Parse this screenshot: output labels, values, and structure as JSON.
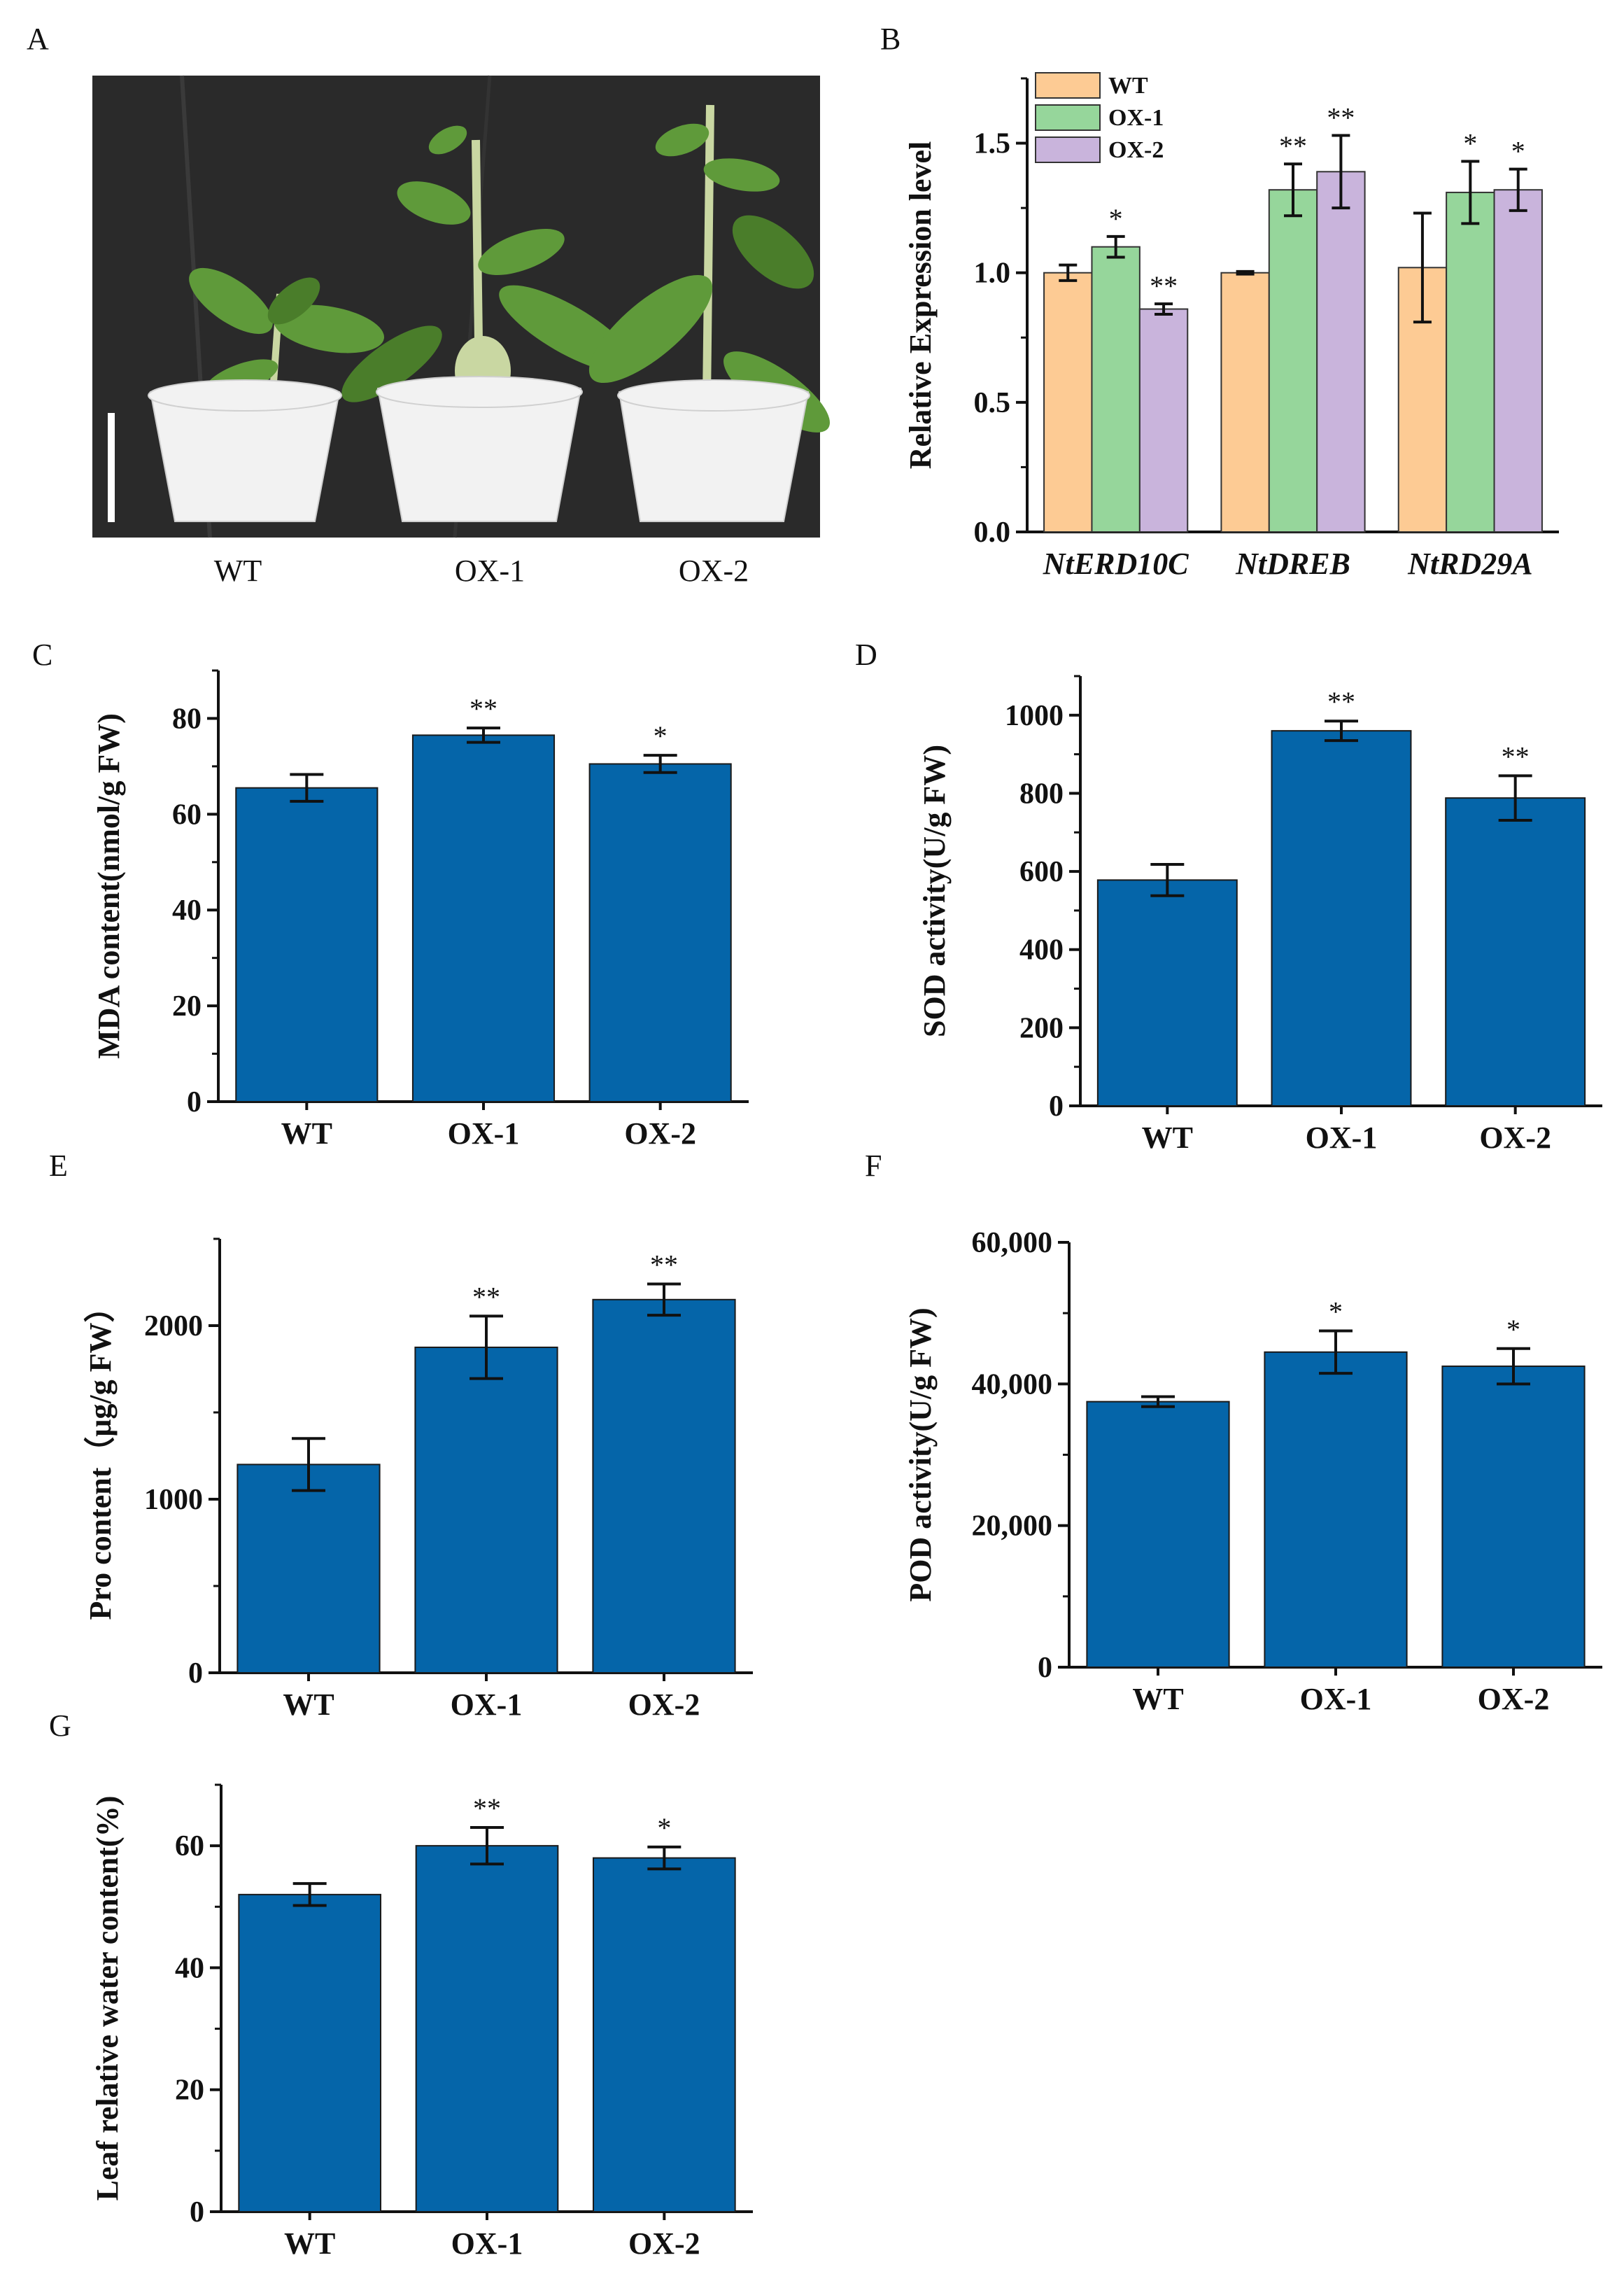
{
  "panel_a": {
    "letter": "A",
    "labels": [
      "WT",
      "OX-1",
      "OX-2"
    ],
    "colors": {
      "background": "#2a2a2a",
      "pot": "#f2f2f2",
      "leaf": "#5f9a3a",
      "leaf_dark": "#4a7d2a",
      "stem": "#c9d7a2",
      "scale_bar": "#ffffff"
    }
  },
  "colors": {
    "bar": "#0565a9",
    "bar_edge": "#1a1a1a",
    "wt": "#fdcb94",
    "ox1": "#96d69b",
    "ox2": "#c9b4dc"
  },
  "chart_data": [
    {
      "id": "B",
      "letter": "B",
      "type": "bar",
      "categories": [
        "NtERD10C",
        "NtDREB",
        "NtRD29A"
      ],
      "series": [
        {
          "name": "WT",
          "values": [
            1.0,
            1.0,
            1.02
          ],
          "errors": [
            0.03,
            0.005,
            0.21
          ],
          "sig": [
            "",
            "",
            ""
          ]
        },
        {
          "name": "OX-1",
          "values": [
            1.1,
            1.32,
            1.31
          ],
          "errors": [
            0.04,
            0.1,
            0.12
          ],
          "sig": [
            "*",
            "**",
            "*"
          ]
        },
        {
          "name": "OX-2",
          "values": [
            0.86,
            1.39,
            1.32
          ],
          "errors": [
            0.02,
            0.14,
            0.08
          ],
          "sig": [
            "**",
            "**",
            "*"
          ]
        }
      ],
      "ylabel": "Relative Expression level",
      "ylim": [
        0,
        1.75
      ],
      "yticks": [
        0,
        0.5,
        1.0,
        1.5
      ],
      "ytick_labels": [
        "0.0",
        "0.5",
        "1.0",
        "1.5"
      ],
      "legend": "top-left"
    },
    {
      "id": "C",
      "letter": "C",
      "type": "bar",
      "categories": [
        "WT",
        "OX-1",
        "OX-2"
      ],
      "values": [
        65.5,
        76.5,
        70.5
      ],
      "errors": [
        2.8,
        1.5,
        1.8
      ],
      "sig": [
        "",
        "**",
        "*"
      ],
      "ylabel": "MDA content(nmol/g FW)",
      "ylim": [
        0,
        90
      ],
      "yticks": [
        0,
        20,
        40,
        60,
        80
      ],
      "ytick_labels": [
        "0",
        "20",
        "40",
        "60",
        "80"
      ]
    },
    {
      "id": "D",
      "letter": "D",
      "type": "bar",
      "categories": [
        "WT",
        "OX-1",
        "OX-2"
      ],
      "values": [
        578,
        960,
        788
      ],
      "errors": [
        40,
        25,
        57
      ],
      "sig": [
        "",
        "**",
        "**"
      ],
      "ylabel": "SOD activity(U/g FW)",
      "ylim": [
        0,
        1100
      ],
      "yticks": [
        0,
        200,
        400,
        600,
        800,
        1000
      ],
      "ytick_labels": [
        "0",
        "200",
        "400",
        "600",
        "800",
        "1000"
      ]
    },
    {
      "id": "E",
      "letter": "E",
      "type": "bar",
      "categories": [
        "WT",
        "OX-1",
        "OX-2"
      ],
      "values": [
        1200,
        1875,
        2150
      ],
      "errors": [
        150,
        180,
        90
      ],
      "sig": [
        "",
        "**",
        "**"
      ],
      "ylabel": "Pro content（μg/g FW）",
      "ylim": [
        0,
        2500
      ],
      "yticks": [
        0,
        1000,
        2000
      ],
      "ytick_labels": [
        "0",
        "1000",
        "2000"
      ]
    },
    {
      "id": "F",
      "letter": "F",
      "type": "bar",
      "categories": [
        "WT",
        "OX-1",
        "OX-2"
      ],
      "values": [
        37500,
        44500,
        42500
      ],
      "errors": [
        700,
        3000,
        2500
      ],
      "sig": [
        "",
        "*",
        "*"
      ],
      "ylabel": "POD activity(U/g FW)",
      "ylim": [
        0,
        60000
      ],
      "yticks": [
        0,
        20000,
        40000,
        60000
      ],
      "ytick_labels": [
        "0",
        "20,000",
        "40,000",
        "60,000"
      ]
    },
    {
      "id": "G",
      "letter": "G",
      "type": "bar",
      "categories": [
        "WT",
        "OX-1",
        "OX-2"
      ],
      "values": [
        52,
        60,
        58
      ],
      "errors": [
        1.8,
        3.0,
        1.8
      ],
      "sig": [
        "",
        "**",
        "*"
      ],
      "ylabel": "Leaf relative water content(%)",
      "ylim": [
        0,
        70
      ],
      "yticks": [
        0,
        20,
        40,
        60
      ],
      "ytick_labels": [
        "0",
        "20",
        "40",
        "60"
      ]
    }
  ]
}
